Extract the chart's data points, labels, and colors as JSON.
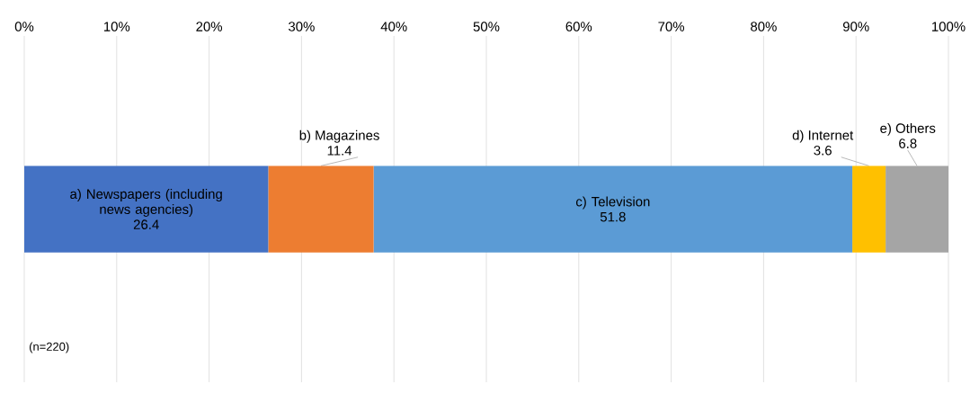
{
  "chart_data": {
    "type": "bar",
    "orientation": "horizontal",
    "stacked": true,
    "categories": [
      null
    ],
    "series": [
      {
        "name": "a) Newspapers (including news agencies)",
        "color": "#4472c4",
        "values": [
          26.4
        ],
        "value_labels": [
          "26.4"
        ]
      },
      {
        "name": "b) Magazines",
        "color": "#ed7d31",
        "values": [
          11.4
        ],
        "value_labels": [
          "11.4"
        ]
      },
      {
        "name": "c) Television",
        "color": "#5b9bd5",
        "values": [
          51.8
        ],
        "value_labels": [
          "51.8"
        ]
      },
      {
        "name": "d) Internet",
        "color": "#ffc000",
        "values": [
          3.6
        ],
        "value_labels": [
          "3.6"
        ]
      },
      {
        "name": "e) Others",
        "color": "#a5a5a5",
        "values": [
          6.8
        ],
        "value_labels": [
          "6.8"
        ]
      }
    ],
    "xlim": [
      0,
      100
    ],
    "xticks": [
      {
        "value": 0,
        "label": "0%"
      },
      {
        "value": 10,
        "label": "10%"
      },
      {
        "value": 20,
        "label": "20%"
      },
      {
        "value": 30,
        "label": "30%"
      },
      {
        "value": 40,
        "label": "40%"
      },
      {
        "value": 50,
        "label": "50%"
      },
      {
        "value": 60,
        "label": "60%"
      },
      {
        "value": 70,
        "label": "70%"
      },
      {
        "value": 80,
        "label": "80%"
      },
      {
        "value": 90,
        "label": "90%"
      },
      {
        "value": 100,
        "label": "100%"
      }
    ],
    "grid": "x",
    "tick_labels": "x",
    "annotations": [
      "(n=220)"
    ]
  }
}
